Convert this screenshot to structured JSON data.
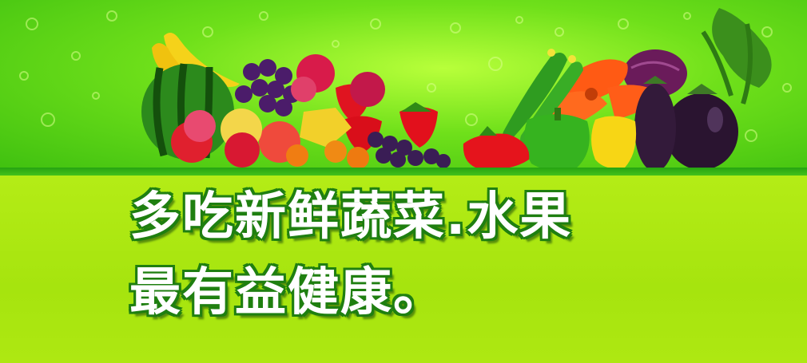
{
  "banner": {
    "slogan_line1": "多吃新鲜蔬菜.水果",
    "slogan_line2": "最有益健康。",
    "background_green": "#a9e60f",
    "top_green": "#6fe01a",
    "outline_green": "#1f7f10"
  },
  "produce_icons": [
    "banana-icon",
    "watermelon-icon",
    "grapes-icon",
    "apple-icon",
    "peach-icon",
    "starfruit-icon",
    "orange-icon",
    "strawberry-icon",
    "tomato-icon",
    "cucumber-icon",
    "carrot-icon",
    "green-pepper-icon",
    "yellow-pepper-icon",
    "red-cabbage-icon",
    "eggplant-icon",
    "celery-icon"
  ]
}
